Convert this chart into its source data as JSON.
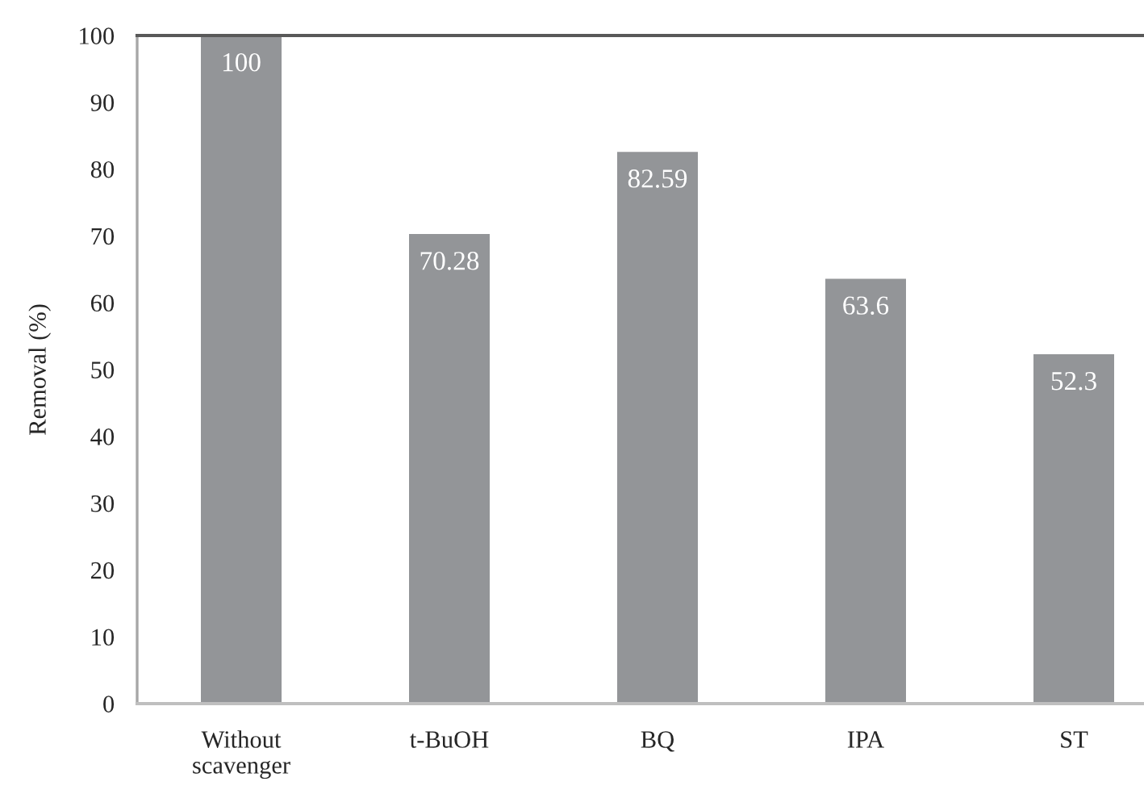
{
  "chart_data": {
    "type": "bar",
    "ylabel": "Removal (%)",
    "categories": [
      "Without\nscavenger",
      "t-BuOH",
      "BQ",
      "IPA",
      "ST"
    ],
    "values": [
      100,
      70.28,
      82.59,
      63.6,
      52.3
    ],
    "color": "#939598",
    "ylim": [
      0,
      100
    ],
    "yticks": [
      0,
      10,
      20,
      30,
      40,
      50,
      60,
      70,
      80,
      90,
      100
    ],
    "data_labels": true
  }
}
